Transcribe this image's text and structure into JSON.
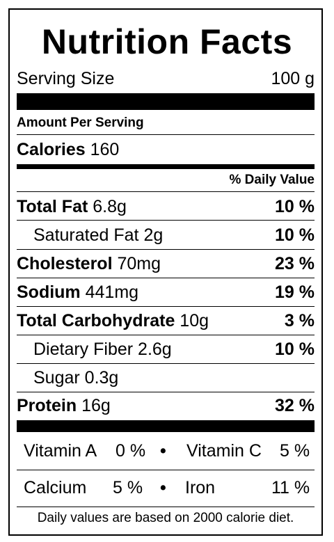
{
  "title": "Nutrition Facts",
  "serving": {
    "label": "Serving Size",
    "value": "100 g"
  },
  "amount_per_serving": "Amount Per Serving",
  "calories": {
    "label": "Calories",
    "value": "160"
  },
  "dv_header": "% Daily Value",
  "nutrients": [
    {
      "name": "Total Fat",
      "amount": "6.8g",
      "dv": "10 %"
    },
    {
      "name": "Saturated Fat",
      "amount": "2g",
      "dv": "10 %"
    },
    {
      "name": "Cholesterol",
      "amount": "70mg",
      "dv": "23 %"
    },
    {
      "name": "Sodium",
      "amount": "441mg",
      "dv": "19 %"
    },
    {
      "name": "Total Carbohydrate",
      "amount": "10g",
      "dv": "3 %"
    },
    {
      "name": "Dietary Fiber",
      "amount": "2.6g",
      "dv": "10 %"
    },
    {
      "name": "Sugar",
      "amount": "0.3g",
      "dv": ""
    },
    {
      "name": "Protein",
      "amount": "16g",
      "dv": "32 %"
    }
  ],
  "vitamins": [
    {
      "name": "Vitamin A",
      "value": "0 %"
    },
    {
      "name": "Vitamin C",
      "value": "5 %"
    },
    {
      "name": "Calcium",
      "value": "5 %"
    },
    {
      "name": "Iron",
      "value": "11 %"
    }
  ],
  "bullet": "•",
  "footnote": "Daily values are based on 2000 calorie diet."
}
